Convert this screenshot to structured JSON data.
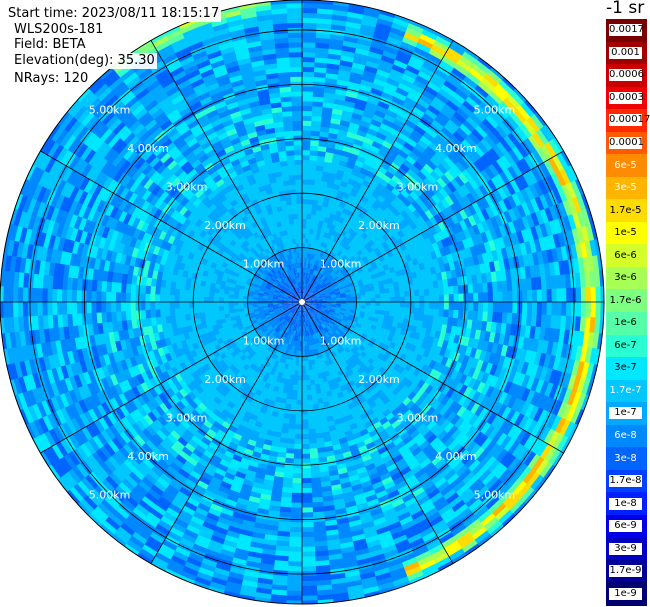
{
  "info": {
    "start_time": "Start time: 2023/08/11 18:15:17",
    "instrument": "WLS200s-181",
    "field": "Field: BETA",
    "elevation": "Elevation(deg): 35.30",
    "nrays": "NRays: 120"
  },
  "colorbar": {
    "title": "-1 sr",
    "labels": [
      "0.0017",
      "0.001",
      "0.0006",
      "0.0003",
      "0.00017",
      "0.0001",
      "6e-5",
      "3e-5",
      "1.7e-5",
      "1e-5",
      "6e-6",
      "3e-6",
      "1.7e-6",
      "1e-6",
      "6e-7",
      "3e-7",
      "1.7e-7",
      "1e-7",
      "6e-8",
      "3e-8",
      "1.7e-8",
      "1e-8",
      "6e-9",
      "3e-9",
      "1.7e-9",
      "1e-9"
    ],
    "colors": [
      "#7a0000",
      "#a00000",
      "#c80000",
      "#f00000",
      "#ff2a00",
      "#ff5a00",
      "#ff8c00",
      "#ffb400",
      "#ffdc00",
      "#ffff00",
      "#d4ff2a",
      "#a8ff55",
      "#7dff80",
      "#55ffaa",
      "#2affd4",
      "#00e8ff",
      "#00c8ff",
      "#00a8ff",
      "#0088ff",
      "#0064ff",
      "#0040ff",
      "#0020ff",
      "#0000e8",
      "#0000c0",
      "#000098",
      "#000070"
    ]
  },
  "chart_data": {
    "type": "heatmap",
    "projection": "polar",
    "field": "BETA",
    "range_rings_km": [
      1,
      2,
      3,
      4,
      5
    ],
    "ring_labels": [
      "1.00km",
      "2.00km",
      "3.00km",
      "4.00km",
      "5.00km"
    ],
    "azimuth_lines_deg": [
      0,
      30,
      60,
      90,
      120,
      150,
      180,
      210,
      240,
      270,
      300,
      330
    ],
    "nrays": 120,
    "max_range_km": 5.55,
    "color_scale": "log",
    "value_range": [
      1e-09,
      0.0017
    ],
    "background_level": 1.7e-07,
    "near_field_level": 3e-08,
    "features": [
      {
        "description": "elevated backscatter band",
        "range_km": 5.3,
        "azimuth_deg": [
          20,
          160
        ],
        "peak_value": 0.0001
      },
      {
        "description": "elevated backscatter band",
        "range_km": 5.5,
        "azimuth_deg": [
          320,
          355
        ],
        "peak_value": 1e-05
      }
    ]
  }
}
